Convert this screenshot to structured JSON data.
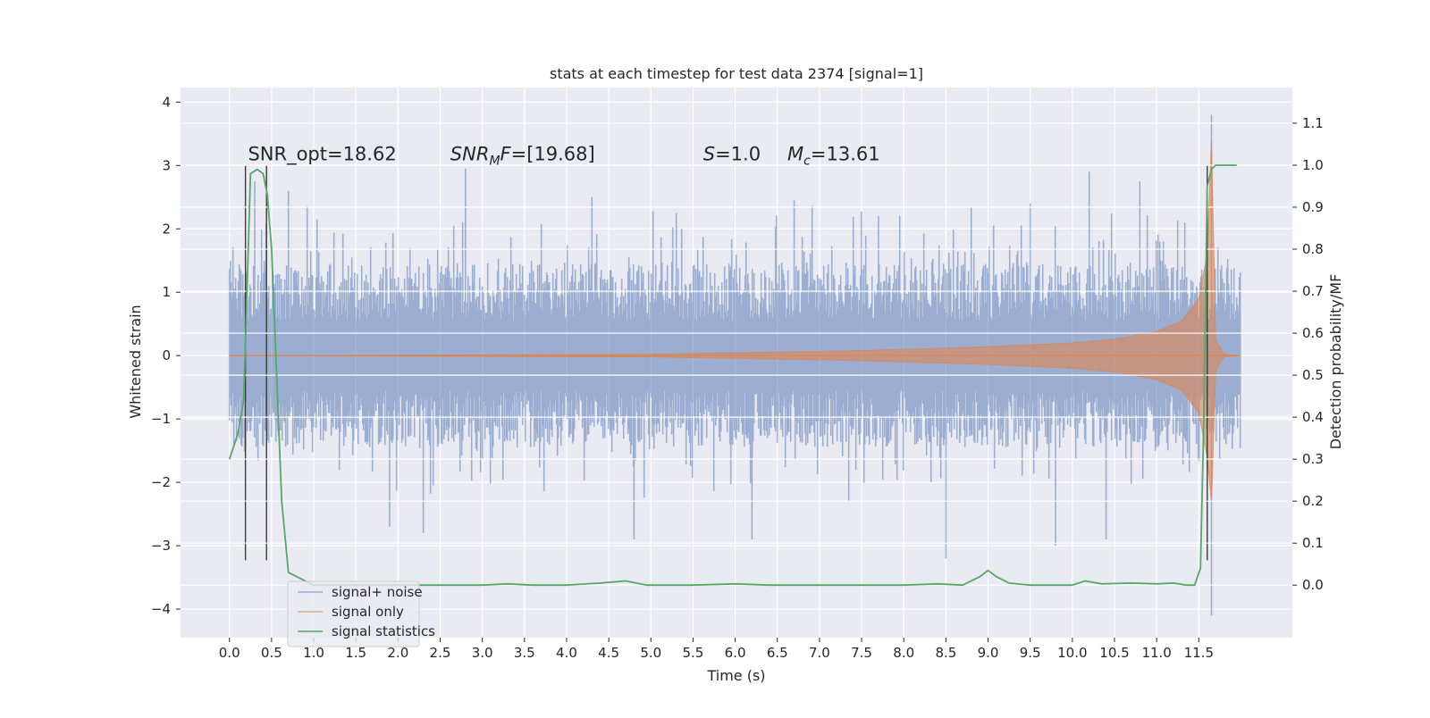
{
  "chart_data": {
    "type": "line",
    "title": "stats at each timestep for test data 2374 [signal=1]",
    "xlabel": "Time (s)",
    "ylabel": "Whitened strain",
    "y2label": "Detection probability/MF",
    "xlim": [
      -0.58,
      12.61
    ],
    "ylim": [
      -4.45,
      4.23
    ],
    "y2lim": [
      -0.125,
      1.185
    ],
    "xticks": [
      "0.0",
      "0.5",
      "1.0",
      "1.5",
      "2.0",
      "2.5",
      "3.0",
      "3.5",
      "4.0",
      "4.5",
      "5.0",
      "5.5",
      "6.0",
      "6.5",
      "7.0",
      "7.5",
      "8.0",
      "8.5",
      "9.0",
      "9.5",
      "10.0",
      "10.5",
      "11.0",
      "11.5"
    ],
    "yticks": [
      "4",
      "3",
      "2",
      "1",
      "0",
      "−1",
      "−2",
      "−3",
      "−4"
    ],
    "y2ticks": [
      "1.1",
      "1.0",
      "0.9",
      "0.8",
      "0.7",
      "0.6",
      "0.5",
      "0.4",
      "0.3",
      "0.2",
      "0.1",
      "0.0"
    ],
    "grid": true,
    "legend_position": "lower-left",
    "annotations": [
      {
        "id": "snr_opt",
        "text": "SNR_opt=18.62",
        "x": 0.22,
        "y": 3.08
      },
      {
        "id": "snr_mf",
        "text": "SNR_MF=[19.68]",
        "x": 2.62,
        "y": 3.08
      },
      {
        "id": "s",
        "text": "S=1.0",
        "x": 5.62,
        "y": 3.08
      },
      {
        "id": "mc",
        "text": "M_c=13.61",
        "x": 6.62,
        "y": 3.08
      }
    ],
    "vlines": [
      {
        "x": 0.19,
        "y": [
          -3.23,
          3.0
        ]
      },
      {
        "x": 0.44,
        "y": [
          -3.23,
          3.0
        ]
      },
      {
        "x": 11.6,
        "y": [
          -3.23,
          3.0
        ]
      }
    ],
    "series": [
      {
        "name": "signal+ noise",
        "color": "#4c72b0",
        "alpha": 0.5,
        "axis": "left",
        "style": "dense noise, roughly ±1.2 body with spikes to ±3, extreme at 11.65 (3.8 / −4.1)",
        "x_range": [
          0.0,
          12.0
        ],
        "spikes": [
          [
            0.3,
            2.75
          ],
          [
            0.7,
            2.6
          ],
          [
            2.8,
            2.95
          ],
          [
            4.3,
            2.5
          ],
          [
            6.7,
            2.45
          ],
          [
            7.7,
            2.2
          ],
          [
            8.8,
            2.35
          ],
          [
            9.5,
            2.4
          ],
          [
            10.2,
            2.9
          ],
          [
            10.8,
            2.75
          ],
          [
            11.65,
            3.8
          ],
          [
            1.9,
            -2.7
          ],
          [
            2.3,
            -2.8
          ],
          [
            4.8,
            -2.9
          ],
          [
            6.2,
            -2.9
          ],
          [
            8.5,
            -3.2
          ],
          [
            9.8,
            -3.0
          ],
          [
            10.4,
            -2.9
          ],
          [
            11.65,
            -4.1
          ]
        ]
      },
      {
        "name": "signal only",
        "color": "#dd8452",
        "alpha": 0.6,
        "axis": "left",
        "style": "chirp: envelope grows from 0 to peak at merger then ringdown",
        "x": [
          0.0,
          5.0,
          7.5,
          9.0,
          10.0,
          10.5,
          11.0,
          11.3,
          11.5,
          11.6,
          11.65,
          11.7,
          11.8,
          12.0
        ],
        "envelope": [
          0.0,
          0.02,
          0.08,
          0.14,
          0.2,
          0.26,
          0.38,
          0.55,
          0.9,
          1.6,
          3.4,
          0.25,
          0.02,
          0.0
        ],
        "envelope_low": [
          0.0,
          -0.02,
          -0.08,
          -0.14,
          -0.2,
          -0.26,
          -0.38,
          -0.55,
          -0.9,
          -1.6,
          -2.3,
          -0.25,
          -0.02,
          0.0
        ]
      },
      {
        "name": "signal statistics",
        "color": "#55a868",
        "axis": "right",
        "x": [
          0.0,
          0.1,
          0.17,
          0.25,
          0.33,
          0.4,
          0.45,
          0.5,
          0.55,
          0.62,
          0.7,
          1.0,
          2.0,
          3.0,
          3.3,
          3.6,
          4.0,
          4.4,
          4.7,
          4.95,
          5.5,
          6.0,
          6.4,
          7.0,
          8.0,
          8.4,
          8.7,
          8.9,
          9.0,
          9.1,
          9.25,
          9.5,
          10.0,
          10.15,
          10.35,
          10.7,
          11.0,
          11.2,
          11.35,
          11.45,
          11.52,
          11.56,
          11.6,
          11.65,
          11.7,
          11.8,
          11.95
        ],
        "y": [
          0.3,
          0.36,
          0.44,
          0.98,
          0.99,
          0.98,
          0.93,
          0.8,
          0.55,
          0.2,
          0.03,
          0.0,
          0.0,
          0.0,
          0.003,
          0.0,
          0.0,
          0.005,
          0.01,
          0.0,
          0.0,
          0.003,
          0.0,
          0.0,
          0.0,
          0.003,
          0.0,
          0.02,
          0.035,
          0.02,
          0.005,
          0.0,
          0.0,
          0.01,
          0.003,
          0.005,
          0.003,
          0.005,
          0.0,
          0.0,
          0.04,
          0.4,
          0.95,
          0.99,
          1.0,
          1.0,
          1.0
        ]
      }
    ]
  }
}
